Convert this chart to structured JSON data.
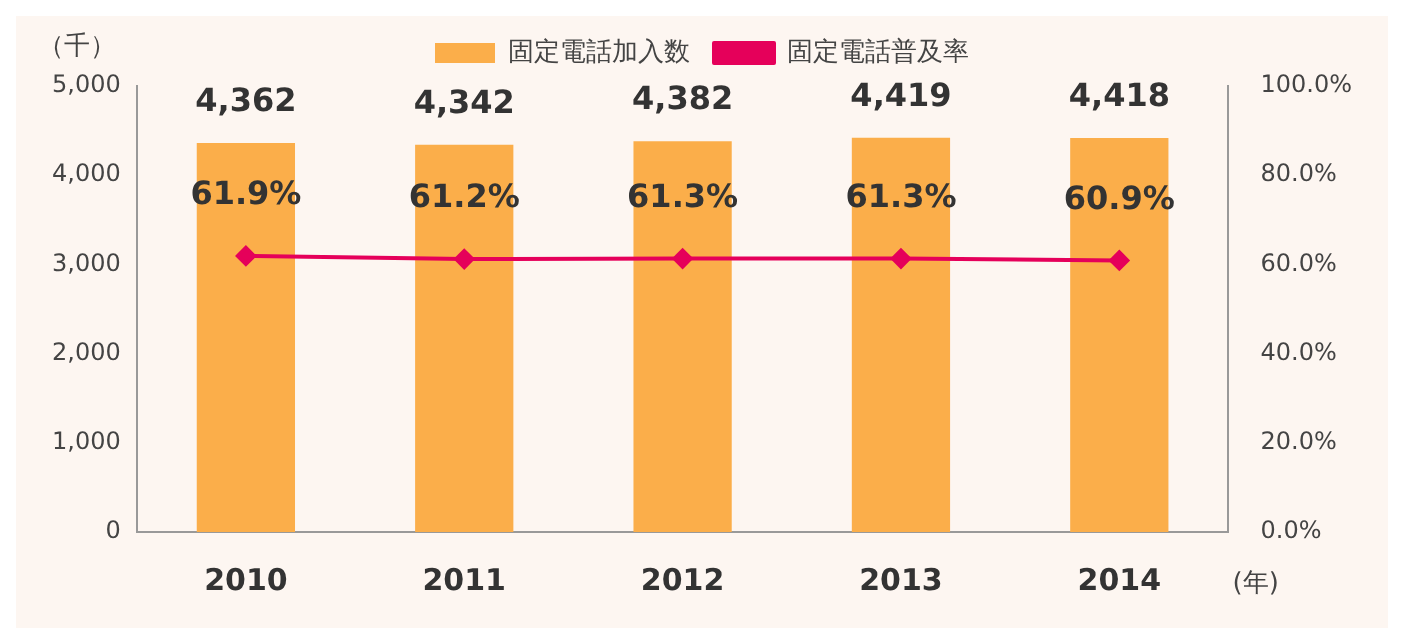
{
  "chart_data": {
    "type": "bar",
    "categories": [
      "2010",
      "2011",
      "2012",
      "2013",
      "2014"
    ],
    "ylabel": "（千）",
    "xlabel": "(年)",
    "series": [
      {
        "name": "固定電話加入数",
        "color": "#fbae4a",
        "values": [
          4362,
          4342,
          4382,
          4419,
          4418
        ],
        "value_labels": [
          "4,362",
          "4,342",
          "4,382",
          "4,419",
          "4,418"
        ]
      },
      {
        "name": "固定電話普及率",
        "type": "line",
        "axis": "y2",
        "color": "#e5005a",
        "marker": "diamond",
        "values": [
          61.9,
          61.2,
          61.3,
          61.3,
          60.9
        ],
        "value_labels": [
          "61.9%",
          "61.2%",
          "61.3%",
          "61.3%",
          "60.9%"
        ]
      }
    ],
    "ylim": [
      0,
      5000
    ],
    "yticks": [
      0,
      {
        "value": 1000,
        "label": "1,000"
      },
      {
        "value": 2000,
        "label": "2,000"
      },
      {
        "value": 3000,
        "label": "3,000"
      },
      {
        "value": 4000,
        "label": "4,000"
      },
      {
        "value": 5000,
        "label": "5,000"
      }
    ],
    "y2lim": [
      0,
      100
    ],
    "y2ticks": [
      {
        "value": 0,
        "label": "0.0%"
      },
      {
        "value": 20,
        "label": "20.0%"
      },
      {
        "value": 40,
        "label": "40.0%"
      },
      {
        "value": 60,
        "label": "60.0%"
      },
      {
        "value": 80,
        "label": "80.0%"
      },
      {
        "value": 100,
        "label": "100.0%"
      }
    ],
    "legend": "top",
    "grid": false
  }
}
